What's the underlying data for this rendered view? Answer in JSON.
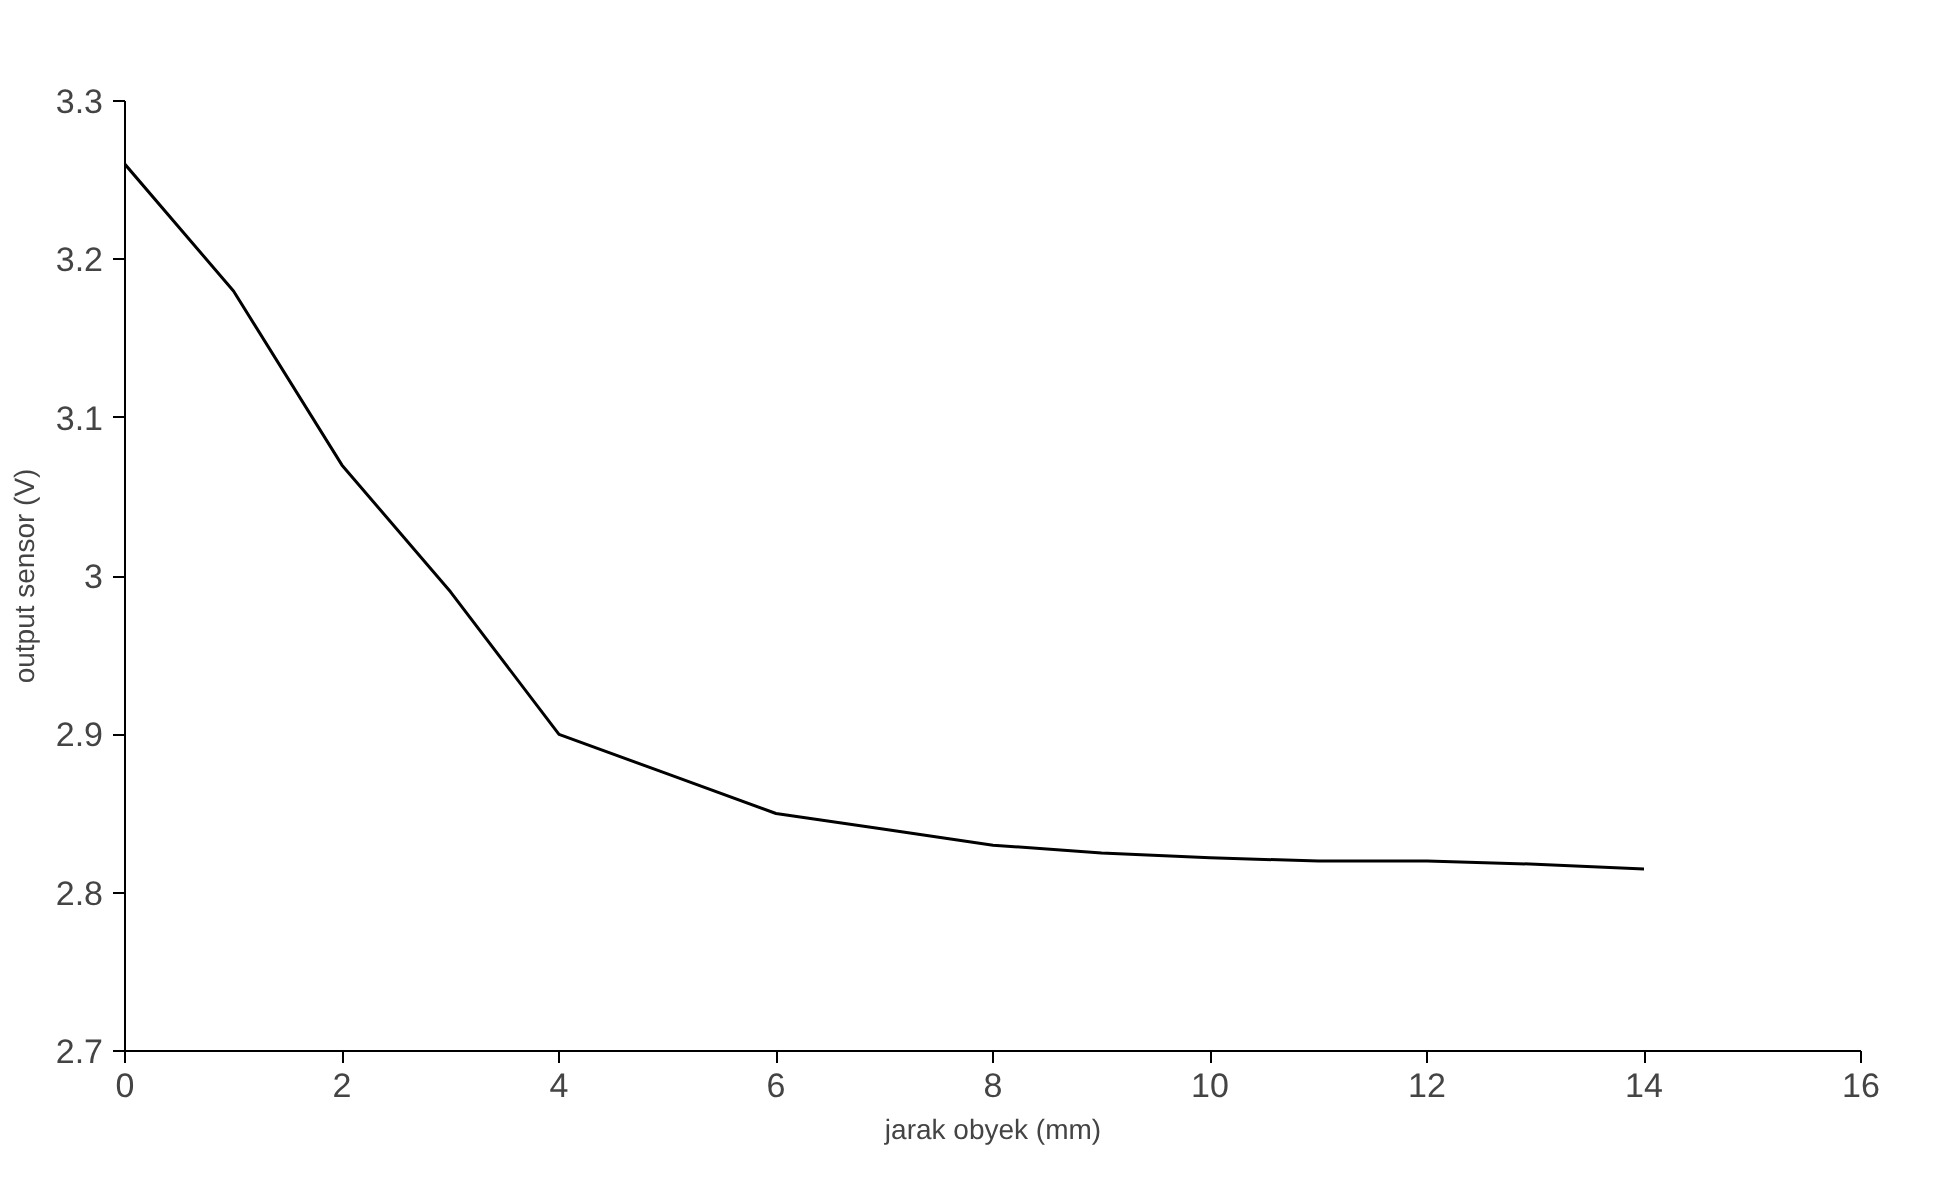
{
  "chart_data": {
    "type": "line",
    "xlabel": "jarak obyek (mm)",
    "ylabel": "output sensor (V)",
    "x": [
      0,
      1,
      2,
      3,
      4,
      5,
      6,
      7,
      8,
      9,
      10,
      11,
      12,
      13,
      14
    ],
    "series": [
      {
        "color": "#000000",
        "values": [
          3.26,
          3.18,
          3.07,
          2.99,
          2.9,
          2.875,
          2.85,
          2.84,
          2.83,
          2.825,
          2.822,
          2.82,
          2.82,
          2.818,
          2.815
        ]
      }
    ],
    "xlim": [
      0,
      16
    ],
    "xticks": [
      0,
      2,
      4,
      6,
      8,
      10,
      12,
      14,
      16
    ],
    "ylim": [
      2.7,
      3.3
    ],
    "yticks": [
      2.7,
      2.8,
      2.9,
      3,
      3.1,
      3.2,
      3.3
    ],
    "grid": false,
    "marker": "none",
    "line_style": "solid"
  }
}
